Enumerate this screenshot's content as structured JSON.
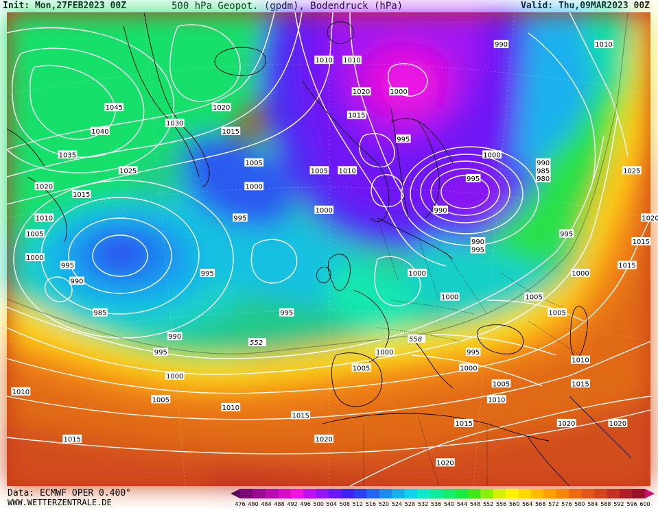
{
  "header": {
    "init": "Init: Mon,27FEB2023 00Z",
    "title": "500 hPa Geopot. (gpdm), Bodendruck (hPa)",
    "valid": "Valid: Thu,09MAR2023 00Z"
  },
  "footer": {
    "data_source": "Data: ECMWF OPER 0.400°",
    "website": "WWW.WETTERZENTRALE.DE"
  },
  "map": {
    "description_layers": [
      "500hPa-geopotential-shading",
      "surface-pressure-isobars",
      "coastlines",
      "country-borders"
    ],
    "pressure_labels": [
      {
        "text": "1010",
        "lon_lat": [
          -20,
          70
        ]
      },
      {
        "text": "1010",
        "lon_lat": [
          -14,
          70
        ]
      },
      {
        "text": "990",
        "lon_lat": [
          18,
          72
        ]
      },
      {
        "text": "1010",
        "lon_lat": [
          40,
          72
        ]
      },
      {
        "text": "1045",
        "lon_lat": [
          -65,
          64
        ]
      },
      {
        "text": "1040",
        "lon_lat": [
          -68,
          61
        ]
      },
      {
        "text": "1030",
        "lon_lat": [
          -52,
          62
        ]
      },
      {
        "text": "1020",
        "lon_lat": [
          -42,
          64
        ]
      },
      {
        "text": "1020",
        "lon_lat": [
          -12,
          66
        ]
      },
      {
        "text": "1000",
        "lon_lat": [
          -4,
          66
        ]
      },
      {
        "text": "1035",
        "lon_lat": [
          -75,
          58
        ]
      },
      {
        "text": "1015",
        "lon_lat": [
          -40,
          61
        ]
      },
      {
        "text": "1015",
        "lon_lat": [
          -13,
          63
        ]
      },
      {
        "text": "1025",
        "lon_lat": [
          -62,
          56
        ]
      },
      {
        "text": "1005",
        "lon_lat": [
          -35,
          57
        ]
      },
      {
        "text": "995",
        "lon_lat": [
          -3,
          60
        ]
      },
      {
        "text": "1025",
        "lon_lat": [
          46,
          56
        ]
      },
      {
        "text": "1020",
        "lon_lat": [
          -80,
          54
        ]
      },
      {
        "text": "1015",
        "lon_lat": [
          -72,
          53
        ]
      },
      {
        "text": "1000",
        "lon_lat": [
          -35,
          54
        ]
      },
      {
        "text": "1005",
        "lon_lat": [
          -21,
          56
        ]
      },
      {
        "text": "1010",
        "lon_lat": [
          -15,
          56
        ]
      },
      {
        "text": "1000",
        "lon_lat": [
          16,
          58
        ]
      },
      {
        "text": "995",
        "lon_lat": [
          12,
          55
        ]
      },
      {
        "text": "990",
        "lon_lat": [
          27,
          57
        ]
      },
      {
        "text": "985",
        "lon_lat": [
          27,
          56
        ]
      },
      {
        "text": "980",
        "lon_lat": [
          27,
          55
        ]
      },
      {
        "text": "1020",
        "lon_lat": [
          50,
          50
        ]
      },
      {
        "text": "1010",
        "lon_lat": [
          -80,
          50
        ]
      },
      {
        "text": "1015",
        "lon_lat": [
          48,
          47
        ]
      },
      {
        "text": "1005",
        "lon_lat": [
          -82,
          48
        ]
      },
      {
        "text": "995",
        "lon_lat": [
          -38,
          50
        ]
      },
      {
        "text": "1000",
        "lon_lat": [
          -20,
          51
        ]
      },
      {
        "text": "990",
        "lon_lat": [
          5,
          51
        ]
      },
      {
        "text": "1000",
        "lon_lat": [
          -82,
          45
        ]
      },
      {
        "text": "995",
        "lon_lat": [
          -75,
          44
        ]
      },
      {
        "text": "1015",
        "lon_lat": [
          45,
          44
        ]
      },
      {
        "text": "990",
        "lon_lat": [
          -73,
          42
        ]
      },
      {
        "text": "990",
        "lon_lat": [
          13,
          47
        ]
      },
      {
        "text": "995",
        "lon_lat": [
          32,
          48
        ]
      },
      {
        "text": "995",
        "lon_lat": [
          13,
          46
        ]
      },
      {
        "text": "995",
        "lon_lat": [
          -45,
          43
        ]
      },
      {
        "text": "1000",
        "lon_lat": [
          0,
          43
        ]
      },
      {
        "text": "1000",
        "lon_lat": [
          35,
          43
        ]
      },
      {
        "text": "985",
        "lon_lat": [
          -68,
          38
        ]
      },
      {
        "text": "1000",
        "lon_lat": [
          7,
          40
        ]
      },
      {
        "text": "1005",
        "lon_lat": [
          25,
          40
        ]
      },
      {
        "text": "995",
        "lon_lat": [
          -28,
          38
        ]
      },
      {
        "text": "1005",
        "lon_lat": [
          30,
          38
        ]
      },
      {
        "text": "990",
        "lon_lat": [
          -52,
          35
        ]
      },
      {
        "text": "995",
        "lon_lat": [
          -55,
          33
        ]
      },
      {
        "text": "1000",
        "lon_lat": [
          -7,
          33
        ]
      },
      {
        "text": "995",
        "lon_lat": [
          12,
          33
        ]
      },
      {
        "text": "1005",
        "lon_lat": [
          -12,
          31
        ]
      },
      {
        "text": "1000",
        "lon_lat": [
          11,
          31
        ]
      },
      {
        "text": "1010",
        "lon_lat": [
          35,
          32
        ]
      },
      {
        "text": "1000",
        "lon_lat": [
          -52,
          30
        ]
      },
      {
        "text": "1005",
        "lon_lat": [
          18,
          29
        ]
      },
      {
        "text": "1015",
        "lon_lat": [
          35,
          29
        ]
      },
      {
        "text": "1010",
        "lon_lat": [
          -85,
          28
        ]
      },
      {
        "text": "1005",
        "lon_lat": [
          -55,
          27
        ]
      },
      {
        "text": "1010",
        "lon_lat": [
          17,
          27
        ]
      },
      {
        "text": "1010",
        "lon_lat": [
          -40,
          26
        ]
      },
      {
        "text": "1015",
        "lon_lat": [
          -25,
          25
        ]
      },
      {
        "text": "1020",
        "lon_lat": [
          32,
          24
        ]
      },
      {
        "text": "1020",
        "lon_lat": [
          43,
          24
        ]
      },
      {
        "text": "1015",
        "lon_lat": [
          10,
          24
        ]
      },
      {
        "text": "1015",
        "lon_lat": [
          -74,
          22
        ]
      },
      {
        "text": "1020",
        "lon_lat": [
          -20,
          22
        ]
      },
      {
        "text": "1020",
        "lon_lat": [
          6,
          19
        ]
      }
    ],
    "geopotential_labels": [
      "552",
      "558"
    ]
  },
  "legend": {
    "ticks": [
      "476",
      "480",
      "484",
      "488",
      "492",
      "496",
      "500",
      "504",
      "508",
      "512",
      "516",
      "520",
      "524",
      "528",
      "532",
      "536",
      "540",
      "544",
      "548",
      "552",
      "556",
      "560",
      "564",
      "568",
      "572",
      "576",
      "580",
      "584",
      "588",
      "592",
      "596",
      "600"
    ],
    "colors": [
      "#7c0a78",
      "#9a0a92",
      "#b80cae",
      "#d60ecb",
      "#ee12e4",
      "#c010f0",
      "#9414f4",
      "#6a1af4",
      "#4020f0",
      "#2c40f0",
      "#2266f0",
      "#1a8cf0",
      "#16b0ee",
      "#12d2ea",
      "#10e8c8",
      "#12ec9a",
      "#16ec6c",
      "#1cea40",
      "#40ea18",
      "#8cee10",
      "#d8f008",
      "#fff400",
      "#ffd800",
      "#ffbc00",
      "#ff9e00",
      "#f8840a",
      "#ee6a12",
      "#e2561a",
      "#d4441e",
      "#c23222",
      "#ae2026",
      "#98102a"
    ]
  }
}
